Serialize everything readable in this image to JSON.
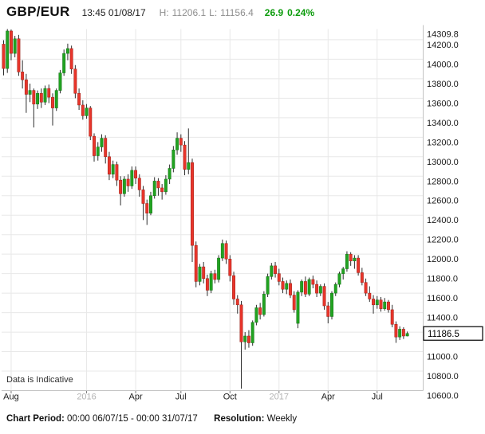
{
  "header": {
    "symbol": "GBP/EUR",
    "timestamp": "13:45 01/08/17",
    "high_label": "H:",
    "high": "11206.1",
    "low_label": "L:",
    "low": "11156.4",
    "change": "26.9",
    "change_pct": "0.24%",
    "change_color": "#0b9b0b"
  },
  "annotations": {
    "indicative": "Data is Indicative"
  },
  "footer": {
    "period_label": "Chart Period:",
    "period": "00:00 06/07/15 - 00:00 31/07/17",
    "resolution_label": "Resolution:",
    "resolution": "Weekly"
  },
  "chart_data": {
    "type": "candlestick",
    "title": "GBP/EUR weekly candlestick chart",
    "resolution": "Weekly",
    "y_axis": {
      "min": 10600,
      "max": 14309.8,
      "tick_labels": [
        14309.8,
        14200,
        14000,
        13800,
        13600,
        13400,
        13200,
        13000,
        12800,
        12600,
        12400,
        12200,
        12000,
        11800,
        11600,
        11400,
        11000,
        10800,
        10600
      ],
      "gridline_step": 200,
      "current_price": 11186.5,
      "current_price_label": "11186.5"
    },
    "x_axis": {
      "labels": [
        {
          "text": "Aug",
          "index": 2,
          "muted": false
        },
        {
          "text": "2016",
          "index": 22,
          "muted": true
        },
        {
          "text": "Apr",
          "index": 35,
          "muted": false
        },
        {
          "text": "Jul",
          "index": 47,
          "muted": false
        },
        {
          "text": "Oct",
          "index": 60,
          "muted": false
        },
        {
          "text": "2017",
          "index": 73,
          "muted": true
        },
        {
          "text": "Apr",
          "index": 86,
          "muted": false
        },
        {
          "text": "Jul",
          "index": 99,
          "muted": false
        }
      ]
    },
    "colors": {
      "up": "#21a321",
      "up_border": "#147014",
      "down": "#e8352b",
      "down_border": "#9e1f16",
      "wick": "#2e2e2e",
      "grid": "#e8e8e8",
      "axis": "#c4c4c4",
      "label": "#1a1a1a",
      "muted_label": "#b3b3b3"
    },
    "candles_format": [
      "open",
      "high",
      "low",
      "close"
    ],
    "candles": [
      [
        14155,
        14195,
        13835,
        13905
      ],
      [
        13905,
        14309.8,
        13860,
        14290
      ],
      [
        14290,
        14305,
        13990,
        14060
      ],
      [
        14060,
        14240,
        14020,
        14210
      ],
      [
        14210,
        14250,
        13830,
        13870
      ],
      [
        13870,
        13990,
        13700,
        13790
      ],
      [
        13790,
        13850,
        13450,
        13640
      ],
      [
        13640,
        13750,
        13560,
        13680
      ],
      [
        13680,
        13700,
        13300,
        13540
      ],
      [
        13540,
        13680,
        13490,
        13650
      ],
      [
        13650,
        13700,
        13500,
        13560
      ],
      [
        13560,
        13730,
        13530,
        13700
      ],
      [
        13700,
        13740,
        13550,
        13610
      ],
      [
        13610,
        13650,
        13320,
        13500
      ],
      [
        13500,
        13700,
        13470,
        13680
      ],
      [
        13680,
        13890,
        13650,
        13860
      ],
      [
        13860,
        14100,
        13830,
        14060
      ],
      [
        14060,
        14160,
        13990,
        14110
      ],
      [
        14110,
        14140,
        13850,
        13900
      ],
      [
        13900,
        13940,
        13600,
        13650
      ],
      [
        13650,
        13700,
        13480,
        13530
      ],
      [
        13530,
        13580,
        13380,
        13420
      ],
      [
        13420,
        13540,
        13390,
        13500
      ],
      [
        13500,
        13520,
        13170,
        13210
      ],
      [
        13210,
        13240,
        12950,
        13010
      ],
      [
        13010,
        13150,
        12960,
        13100
      ],
      [
        13100,
        13230,
        13050,
        13190
      ],
      [
        13190,
        13220,
        12930,
        13000
      ],
      [
        13000,
        13050,
        12760,
        12820
      ],
      [
        12820,
        12960,
        12780,
        12920
      ],
      [
        12920,
        12950,
        12700,
        12760
      ],
      [
        12760,
        12800,
        12500,
        12620
      ],
      [
        12620,
        12800,
        12590,
        12770
      ],
      [
        12770,
        12820,
        12640,
        12700
      ],
      [
        12700,
        12900,
        12670,
        12860
      ],
      [
        12860,
        12900,
        12720,
        12780
      ],
      [
        12780,
        12820,
        12590,
        12660
      ],
      [
        12660,
        12700,
        12350,
        12520
      ],
      [
        12520,
        12560,
        12300,
        12420
      ],
      [
        12420,
        12640,
        12400,
        12600
      ],
      [
        12600,
        12790,
        12570,
        12750
      ],
      [
        12750,
        12780,
        12600,
        12680
      ],
      [
        12680,
        12720,
        12560,
        12640
      ],
      [
        12640,
        12810,
        12610,
        12770
      ],
      [
        12770,
        12920,
        12720,
        12880
      ],
      [
        12880,
        13110,
        12840,
        13070
      ],
      [
        13070,
        13250,
        13020,
        13190
      ],
      [
        13190,
        13230,
        13050,
        13120
      ],
      [
        13120,
        13160,
        12810,
        12870
      ],
      [
        12870,
        13290,
        12820,
        12940
      ],
      [
        12940,
        12980,
        11920,
        12090
      ],
      [
        12090,
        12130,
        11660,
        11720
      ],
      [
        11720,
        11900,
        11680,
        11870
      ],
      [
        11870,
        11920,
        11700,
        11750
      ],
      [
        11750,
        11790,
        11570,
        11630
      ],
      [
        11630,
        11830,
        11600,
        11800
      ],
      [
        11800,
        11840,
        11700,
        11740
      ],
      [
        11740,
        11990,
        11710,
        11960
      ],
      [
        11960,
        12150,
        11930,
        12110
      ],
      [
        12110,
        12140,
        11900,
        11950
      ],
      [
        11950,
        11990,
        11720,
        11780
      ],
      [
        11780,
        11820,
        11480,
        11540
      ],
      [
        11540,
        11580,
        11390,
        11480
      ],
      [
        11480,
        11520,
        10620,
        11100
      ],
      [
        11100,
        11200,
        11020,
        11160
      ],
      [
        11160,
        11220,
        11040,
        11090
      ],
      [
        11090,
        11320,
        11060,
        11300
      ],
      [
        11300,
        11480,
        11270,
        11450
      ],
      [
        11450,
        11500,
        11330,
        11380
      ],
      [
        11380,
        11620,
        11360,
        11590
      ],
      [
        11590,
        11800,
        11560,
        11770
      ],
      [
        11770,
        11910,
        11740,
        11880
      ],
      [
        11880,
        11920,
        11760,
        11800
      ],
      [
        11800,
        11850,
        11680,
        11720
      ],
      [
        11720,
        11760,
        11600,
        11640
      ],
      [
        11640,
        11730,
        11590,
        11700
      ],
      [
        11700,
        11740,
        11550,
        11580
      ],
      [
        11580,
        11620,
        11400,
        11430
      ],
      [
        11290,
        11630,
        11240,
        11610
      ],
      [
        11610,
        11740,
        11570,
        11720
      ],
      [
        11720,
        11770,
        11560,
        11590
      ],
      [
        11590,
        11760,
        11570,
        11740
      ],
      [
        11740,
        11780,
        11650,
        11690
      ],
      [
        11690,
        11730,
        11560,
        11600
      ],
      [
        11600,
        11690,
        11570,
        11670
      ],
      [
        11670,
        11700,
        11430,
        11470
      ],
      [
        11470,
        11510,
        11290,
        11360
      ],
      [
        11360,
        11620,
        11330,
        11600
      ],
      [
        11600,
        11710,
        11570,
        11690
      ],
      [
        11690,
        11820,
        11660,
        11800
      ],
      [
        11800,
        11870,
        11740,
        11850
      ],
      [
        11850,
        12030,
        11820,
        12000
      ],
      [
        12000,
        12020,
        11880,
        11930
      ],
      [
        11930,
        11990,
        11850,
        11960
      ],
      [
        11960,
        11990,
        11780,
        11810
      ],
      [
        11810,
        11860,
        11680,
        11710
      ],
      [
        11710,
        11750,
        11570,
        11600
      ],
      [
        11600,
        11670,
        11510,
        11540
      ],
      [
        11540,
        11580,
        11390,
        11480
      ],
      [
        11480,
        11570,
        11440,
        11530
      ],
      [
        11530,
        11560,
        11410,
        11440
      ],
      [
        11440,
        11550,
        11420,
        11510
      ],
      [
        11510,
        11530,
        11400,
        11430
      ],
      [
        11430,
        11480,
        11250,
        11280
      ],
      [
        11280,
        11310,
        11090,
        11150
      ],
      [
        11150,
        11260,
        11120,
        11230
      ],
      [
        11230,
        11250,
        11130,
        11160
      ],
      [
        11160,
        11206.1,
        11156.4,
        11186.5
      ]
    ]
  }
}
